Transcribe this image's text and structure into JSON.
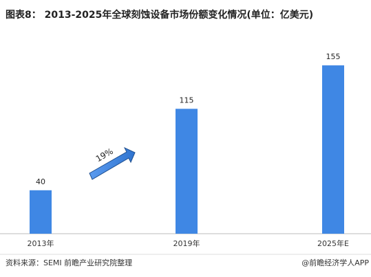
{
  "chart_data": {
    "type": "bar",
    "title": "图表8： 2013-2025年全球刻蚀设备市场份额变化情况(单位：亿美元)",
    "categories": [
      "2013年",
      "2019年",
      "2025年E"
    ],
    "values": [
      40,
      115,
      155
    ],
    "color": "#3f87e4",
    "annotation": "19%",
    "source": "资料来源：SEMI 前瞻产业研究院整理",
    "credit": "@前瞻经济学人APP"
  }
}
